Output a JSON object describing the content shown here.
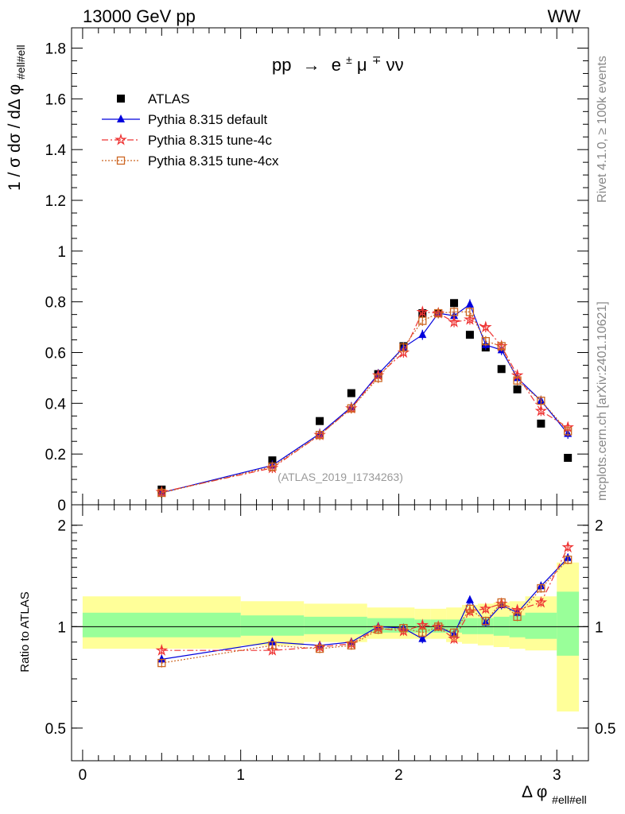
{
  "header": {
    "energy_label": "13000 GeV pp",
    "process_label": "WW",
    "side_label_top": "Rivet 4.1.0, ≥ 100k events",
    "side_label_bottom": "mcplots.cern.ch [arXiv:2401.10621]"
  },
  "chart_data": [
    {
      "type": "scatter",
      "title": "pp → e±μ∓νν",
      "title_parts": {
        "pp": "pp",
        "arrow": "→",
        "e": "e",
        "e_sup": "±",
        "mu": "μ",
        "mu_sup": "∓",
        "nunu": "νν"
      },
      "watermark": "(ATLAS_2019_I1734263)",
      "ylabel": "1 / σ  dσ / dΔ φ",
      "ylabel_sub": "#ell#ell",
      "ylim": [
        0,
        1.88
      ],
      "yticks": [
        {
          "v": 0,
          "label": "0"
        },
        {
          "v": 0.2,
          "label": "0.2"
        },
        {
          "v": 0.4,
          "label": "0.4"
        },
        {
          "v": 0.6,
          "label": "0.6"
        },
        {
          "v": 0.8,
          "label": "0.8"
        },
        {
          "v": 1.0,
          "label": "1"
        },
        {
          "v": 1.2,
          "label": "1.2"
        },
        {
          "v": 1.4,
          "label": "1.4"
        },
        {
          "v": 1.6,
          "label": "1.6"
        },
        {
          "v": 1.8,
          "label": "1.8"
        }
      ],
      "xlim": [
        -0.07,
        3.2
      ],
      "legend_position": "top-left",
      "series": [
        {
          "name": "ATLAS",
          "style": "data",
          "color": "#000000",
          "x": [
            0.5,
            1.2,
            1.5,
            1.7,
            1.87,
            2.03,
            2.15,
            2.25,
            2.35,
            2.45,
            2.55,
            2.65,
            2.75,
            2.9,
            3.07
          ],
          "values": [
            0.06,
            0.175,
            0.33,
            0.44,
            0.515,
            0.625,
            0.755,
            0.755,
            0.795,
            0.67,
            0.62,
            0.535,
            0.455,
            0.32,
            0.185
          ]
        },
        {
          "name": "Pythia 8.315 default",
          "style": "solid",
          "color": "#0000dd",
          "marker": "triangle",
          "x": [
            0.5,
            1.2,
            1.5,
            1.7,
            1.87,
            2.03,
            2.15,
            2.25,
            2.35,
            2.45,
            2.55,
            2.65,
            2.75,
            2.9,
            3.07
          ],
          "values": [
            0.048,
            0.155,
            0.28,
            0.385,
            0.515,
            0.62,
            0.67,
            0.755,
            0.745,
            0.79,
            0.63,
            0.61,
            0.5,
            0.41,
            0.28
          ]
        },
        {
          "name": "Pythia 8.315 tune-4c",
          "style": "dashdot",
          "color": "#ee3333",
          "marker": "star",
          "x": [
            0.5,
            1.2,
            1.5,
            1.7,
            1.87,
            2.03,
            2.15,
            2.25,
            2.35,
            2.45,
            2.55,
            2.65,
            2.75,
            2.9,
            3.07
          ],
          "values": [
            0.05,
            0.145,
            0.275,
            0.38,
            0.51,
            0.6,
            0.76,
            0.755,
            0.72,
            0.73,
            0.7,
            0.625,
            0.51,
            0.37,
            0.305
          ]
        },
        {
          "name": "Pythia 8.315 tune-4cx",
          "style": "dotted",
          "color": "#cc6622",
          "marker": "open-square",
          "x": [
            0.5,
            1.2,
            1.5,
            1.7,
            1.87,
            2.03,
            2.15,
            2.25,
            2.35,
            2.45,
            2.55,
            2.65,
            2.75,
            2.9,
            3.07
          ],
          "values": [
            0.047,
            0.15,
            0.275,
            0.38,
            0.5,
            0.62,
            0.725,
            0.755,
            0.76,
            0.76,
            0.645,
            0.625,
            0.49,
            0.41,
            0.29
          ]
        }
      ]
    },
    {
      "type": "ratio",
      "ylabel": "Ratio to ATLAS",
      "xlabel": "Δ φ",
      "xlabel_sub": "#ell#ell",
      "ylim": [
        0.4,
        2.3
      ],
      "yscale": "log",
      "yticks": [
        {
          "v": 0.5,
          "label": "0.5"
        },
        {
          "v": 1,
          "label": "1"
        },
        {
          "v": 2,
          "label": "2"
        }
      ],
      "xticks": [
        {
          "v": 0,
          "label": "0"
        },
        {
          "v": 1,
          "label": "1"
        },
        {
          "v": 2,
          "label": "2"
        },
        {
          "v": 3,
          "label": "3"
        }
      ],
      "xlim": [
        -0.07,
        3.2
      ],
      "band_bins": [
        {
          "lo": 0.0,
          "hi": 1.0,
          "inner": [
            0.93,
            1.1
          ],
          "outer": [
            0.86,
            1.23
          ]
        },
        {
          "lo": 1.0,
          "hi": 1.4,
          "inner": [
            0.94,
            1.08
          ],
          "outer": [
            0.88,
            1.19
          ]
        },
        {
          "lo": 1.4,
          "hi": 1.8,
          "inner": [
            0.95,
            1.07
          ],
          "outer": [
            0.9,
            1.17
          ]
        },
        {
          "lo": 1.8,
          "hi": 2.1,
          "inner": [
            0.96,
            1.06
          ],
          "outer": [
            0.92,
            1.14
          ]
        },
        {
          "lo": 2.1,
          "hi": 2.2,
          "inner": [
            0.96,
            1.05
          ],
          "outer": [
            0.92,
            1.13
          ]
        },
        {
          "lo": 2.2,
          "hi": 2.3,
          "inner": [
            0.96,
            1.05
          ],
          "outer": [
            0.92,
            1.13
          ]
        },
        {
          "lo": 2.3,
          "hi": 2.4,
          "inner": [
            0.96,
            1.05
          ],
          "outer": [
            0.9,
            1.14
          ]
        },
        {
          "lo": 2.4,
          "hi": 2.5,
          "inner": [
            0.95,
            1.06
          ],
          "outer": [
            0.89,
            1.16
          ]
        },
        {
          "lo": 2.5,
          "hi": 2.6,
          "inner": [
            0.95,
            1.06
          ],
          "outer": [
            0.88,
            1.17
          ]
        },
        {
          "lo": 2.6,
          "hi": 2.7,
          "inner": [
            0.94,
            1.07
          ],
          "outer": [
            0.87,
            1.18
          ]
        },
        {
          "lo": 2.7,
          "hi": 2.8,
          "inner": [
            0.93,
            1.08
          ],
          "outer": [
            0.86,
            1.19
          ]
        },
        {
          "lo": 2.8,
          "hi": 3.0,
          "inner": [
            0.92,
            1.1
          ],
          "outer": [
            0.85,
            1.23
          ]
        },
        {
          "lo": 3.0,
          "hi": 3.14,
          "inner": [
            0.82,
            1.27
          ],
          "outer": [
            0.56,
            1.55
          ]
        }
      ],
      "series": [
        {
          "name": "Pythia 8.315 default",
          "color": "#0000dd",
          "x": [
            0.5,
            1.2,
            1.5,
            1.7,
            1.87,
            2.03,
            2.15,
            2.25,
            2.35,
            2.45,
            2.55,
            2.65,
            2.75,
            2.9,
            3.07
          ],
          "values": [
            0.8,
            0.9,
            0.88,
            0.9,
            1.0,
            0.99,
            0.92,
            1.0,
            0.95,
            1.2,
            1.03,
            1.16,
            1.1,
            1.32,
            1.6
          ]
        },
        {
          "name": "Pythia 8.315 tune-4c",
          "color": "#ee3333",
          "x": [
            0.5,
            1.2,
            1.5,
            1.7,
            1.87,
            2.03,
            2.15,
            2.25,
            2.35,
            2.45,
            2.55,
            2.65,
            2.75,
            2.9,
            3.07
          ],
          "values": [
            0.85,
            0.85,
            0.87,
            0.89,
            0.99,
            0.97,
            1.01,
            1.0,
            0.92,
            1.11,
            1.13,
            1.17,
            1.12,
            1.18,
            1.72
          ]
        },
        {
          "name": "Pythia 8.315 tune-4cx",
          "color": "#cc6622",
          "x": [
            0.5,
            1.2,
            1.5,
            1.7,
            1.87,
            2.03,
            2.15,
            2.25,
            2.35,
            2.45,
            2.55,
            2.65,
            2.75,
            2.9,
            3.07
          ],
          "values": [
            0.78,
            0.88,
            0.86,
            0.88,
            0.98,
            0.99,
            0.96,
            1.0,
            0.96,
            1.13,
            1.04,
            1.18,
            1.07,
            1.3,
            1.58
          ]
        }
      ]
    }
  ]
}
